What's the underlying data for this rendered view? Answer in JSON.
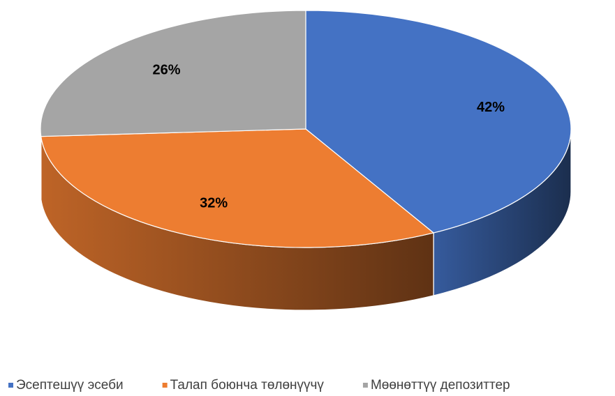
{
  "chart_data": {
    "type": "pie",
    "three_d": true,
    "categories": [
      "Эсептешүү эсеби",
      "Талап боюнча төлөнүүчү",
      "Мөөнөттүү депозиттер"
    ],
    "values": [
      42,
      32,
      26
    ],
    "value_labels": [
      "42%",
      "32%",
      "26%"
    ],
    "colors": [
      "#4472c4",
      "#ed7d31",
      "#a5a5a5"
    ],
    "legend": "bottom"
  }
}
